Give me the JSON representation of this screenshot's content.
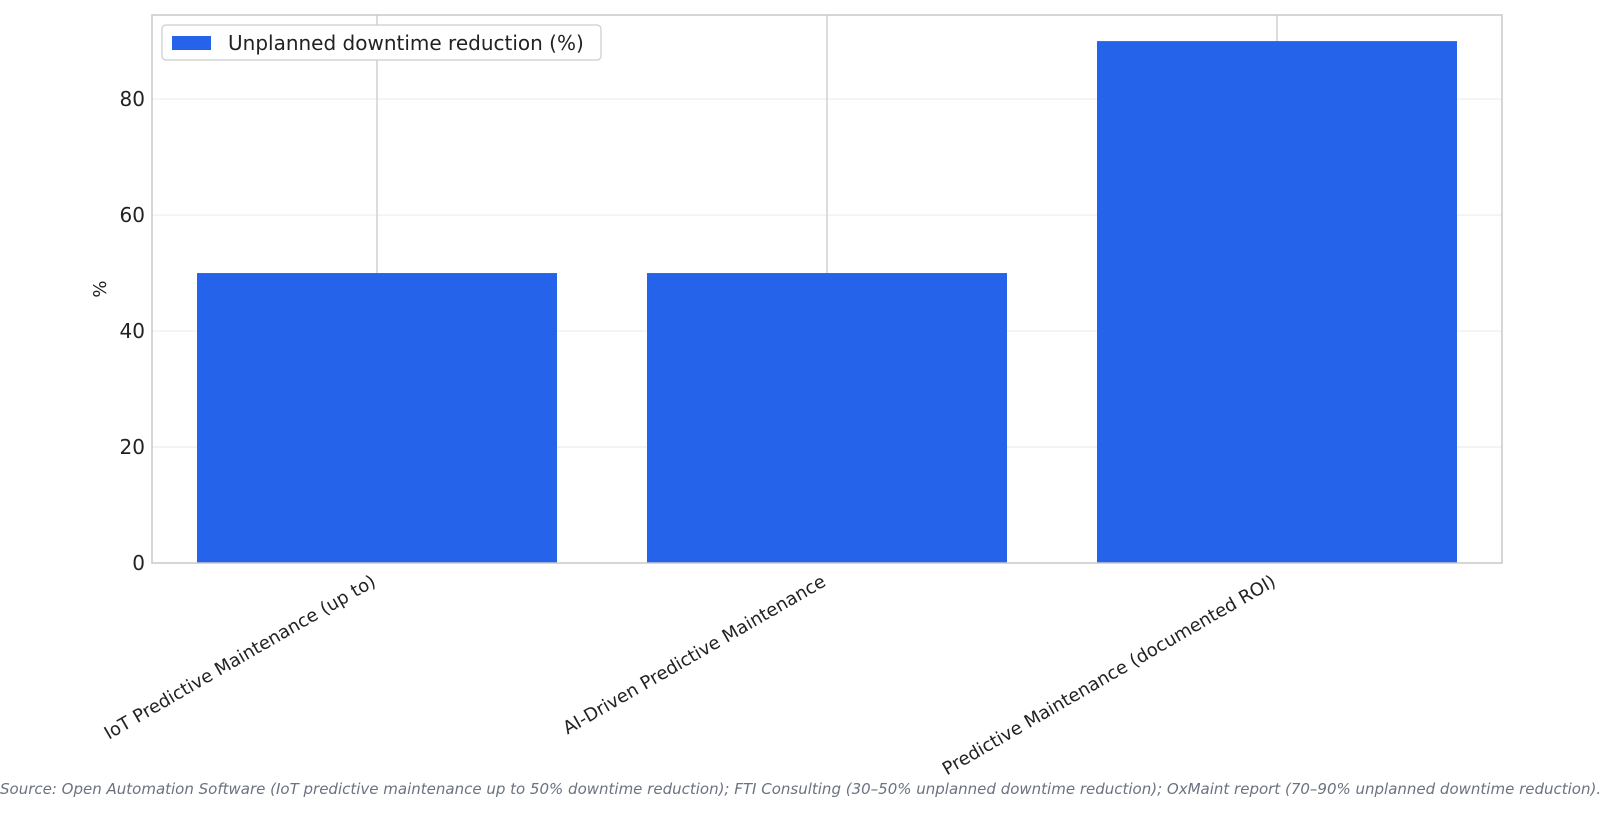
{
  "chart_data": {
    "type": "bar",
    "categories": [
      "IoT Predictive Maintenance (up to)",
      "AI-Driven Predictive Maintenance",
      "Predictive Maintenance (documented ROI)"
    ],
    "series": [
      {
        "name": "Unplanned downtime reduction (%)",
        "values": [
          50,
          50,
          90
        ],
        "color": "#2563eb"
      }
    ],
    "ylabel": "%",
    "ylim": [
      0,
      94.5
    ],
    "yticks": [
      0,
      20,
      40,
      60,
      80
    ],
    "grid": true,
    "legend_position": "top-left"
  },
  "source_note": "Source: Open Automation Software (IoT predictive maintenance up to 50% downtime reduction); FTI Consulting (30–50% unplanned downtime reduction); OxMaint report (70–90% unplanned downtime reduction)."
}
